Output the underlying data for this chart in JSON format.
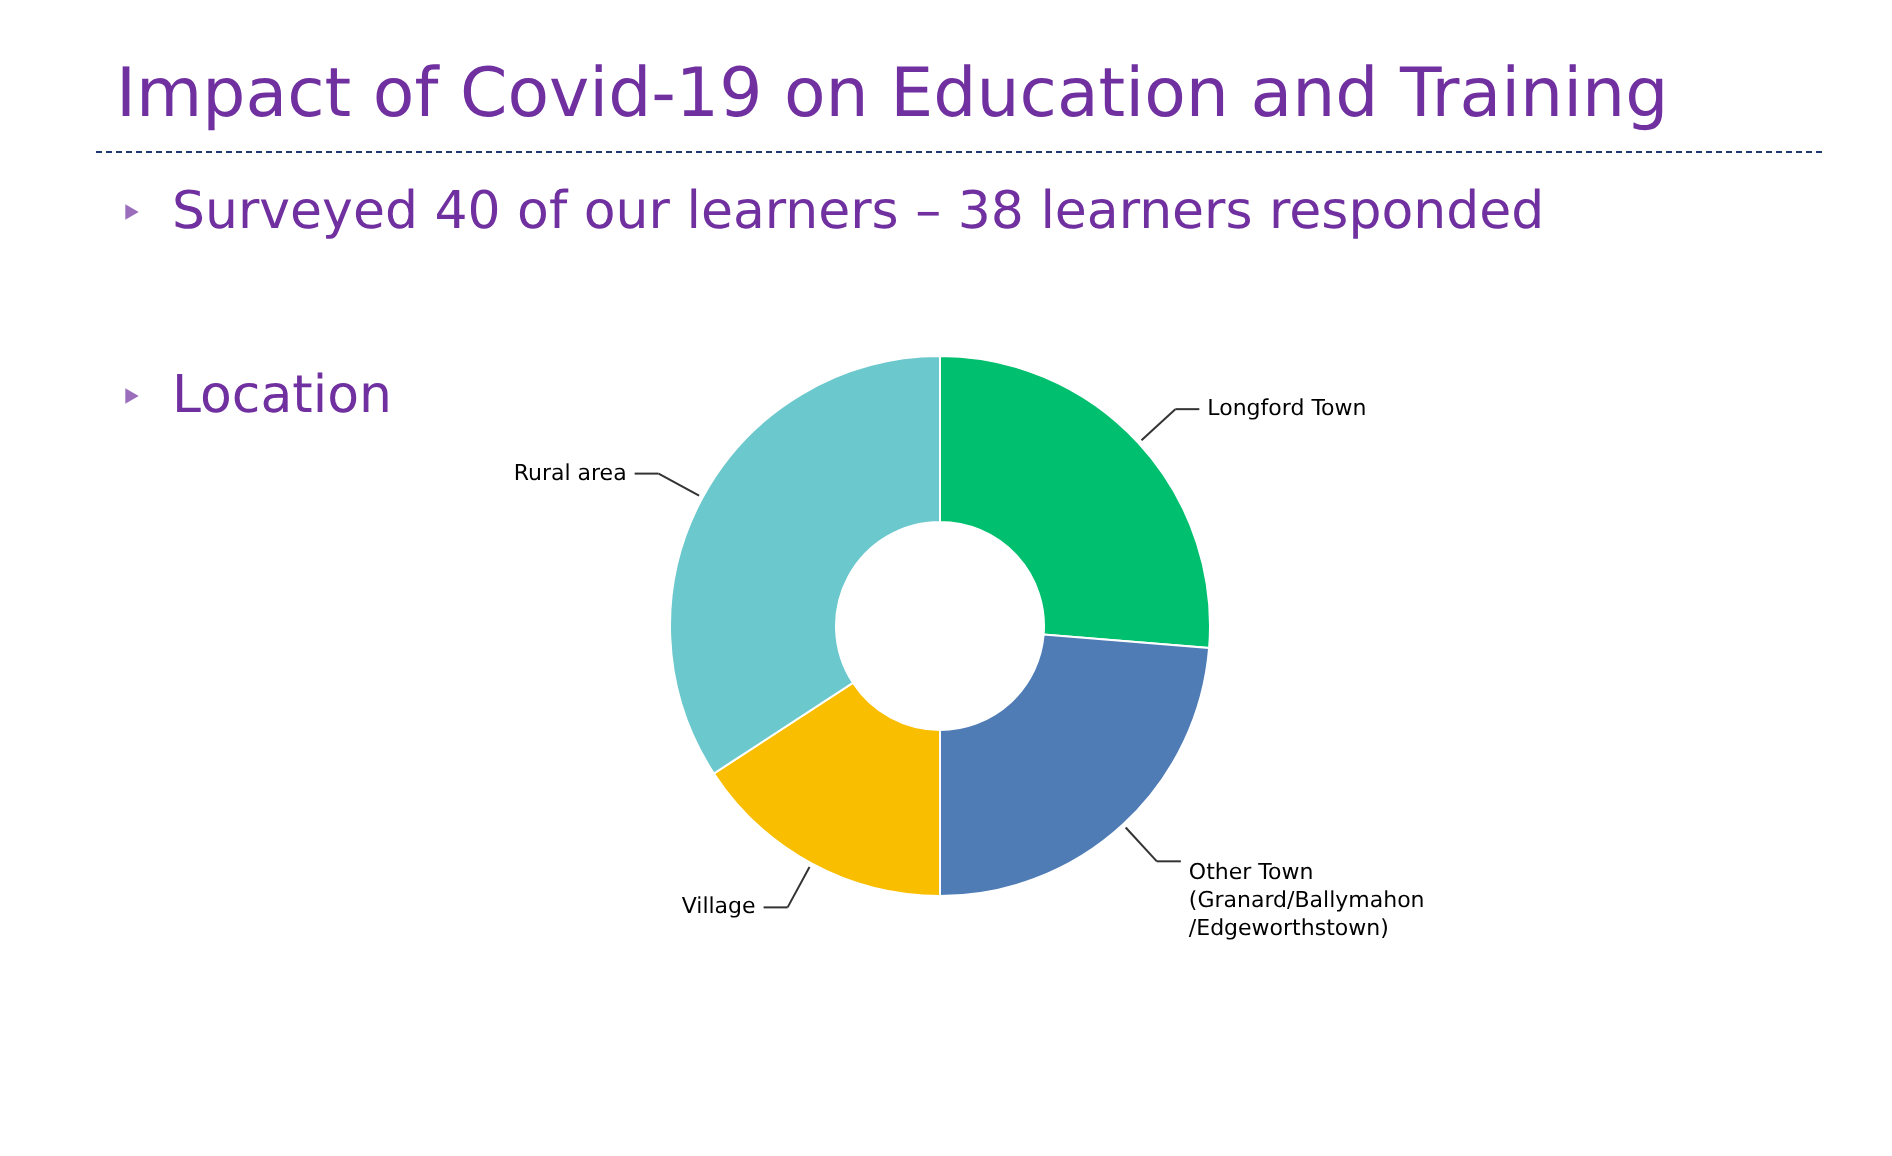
{
  "chart_data": {
    "type": "donut",
    "title": "Impact of Covid-19 on Education and Training",
    "subtitle": "Surveyed 40 of our learners – 38 learners responded",
    "annotations": [
      "Location"
    ],
    "categories": [
      "Longford Town",
      "Other Town\n(Granard/Ballymahon\n/Edgeworthstown)",
      "Village",
      "Rural area"
    ],
    "values": [
      26.3,
      23.7,
      15.8,
      34.2
    ],
    "colors": [
      "#00bf6f",
      "#507cb6",
      "#f9be00",
      "#6bc8cd"
    ],
    "legend": false
  }
}
